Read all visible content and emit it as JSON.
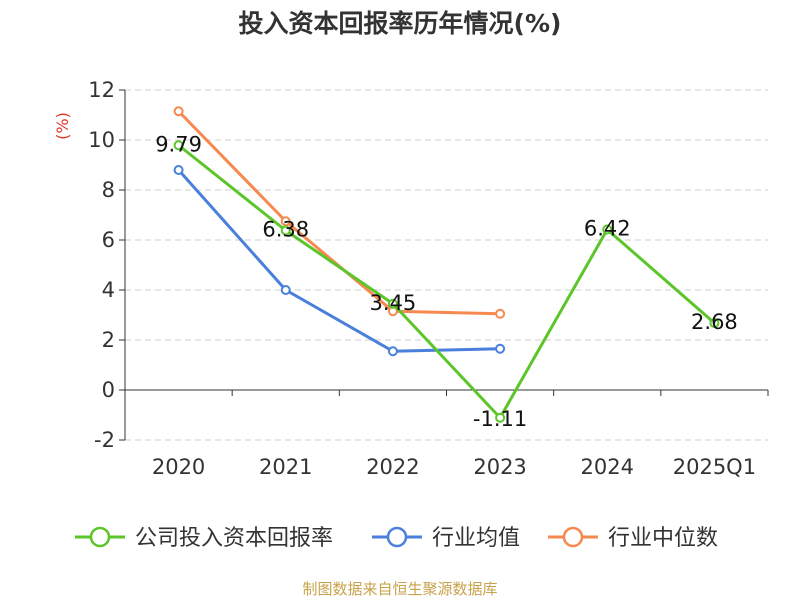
{
  "chart_data": {
    "type": "line",
    "title": "投入资本回报率历年情况(%)",
    "ylabel": "(%)",
    "categories": [
      "2020",
      "2021",
      "2022",
      "2023",
      "2024",
      "2025Q1"
    ],
    "ylim": [
      -2,
      12
    ],
    "yticks": [
      -2,
      0,
      2,
      4,
      6,
      8,
      10,
      12
    ],
    "grid": true,
    "legend_position": "bottom",
    "series": [
      {
        "name": "公司投入资本回报率",
        "color": "#5cc52a",
        "values": [
          9.79,
          6.38,
          3.45,
          -1.11,
          6.42,
          2.68
        ],
        "labels": [
          "9.79",
          "6.38",
          "3.45",
          "-1.11",
          "6.42",
          "2.68"
        ]
      },
      {
        "name": "行业均值",
        "color": "#4a7fdb",
        "values": [
          8.8,
          4.0,
          1.55,
          1.65,
          null,
          null
        ]
      },
      {
        "name": "行业中位数",
        "color": "#f5894f",
        "values": [
          11.15,
          6.75,
          3.15,
          3.05,
          null,
          null
        ]
      }
    ]
  },
  "footer": {
    "source": "制图数据来自恒生聚源数据库"
  }
}
